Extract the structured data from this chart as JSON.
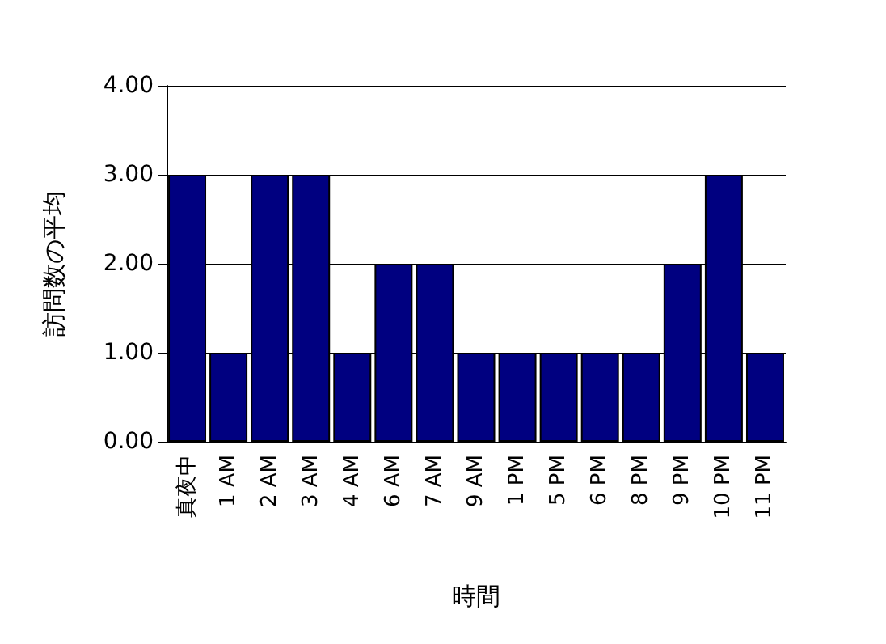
{
  "chart_data": {
    "type": "bar",
    "xlabel": "時間",
    "ylabel": "訪問数の平均",
    "categories": [
      "真夜中",
      "1 AM",
      "2 AM",
      "3 AM",
      "4 AM",
      "6 AM",
      "7 AM",
      "9 AM",
      "1 PM",
      "5 PM",
      "6 PM",
      "8 PM",
      "9 PM",
      "10 PM",
      "11 PM"
    ],
    "values": [
      3,
      1,
      3,
      3,
      1,
      2,
      2,
      1,
      1,
      1,
      1,
      1,
      2,
      3,
      1
    ],
    "color": "#000080",
    "ylim": [
      0,
      4
    ],
    "yticks": [
      {
        "value": 0,
        "label": "0.00"
      },
      {
        "value": 1,
        "label": "1.00"
      },
      {
        "value": 2,
        "label": "2.00"
      },
      {
        "value": 3,
        "label": "3.00"
      },
      {
        "value": 4,
        "label": "4.00"
      }
    ],
    "grid": "y"
  }
}
